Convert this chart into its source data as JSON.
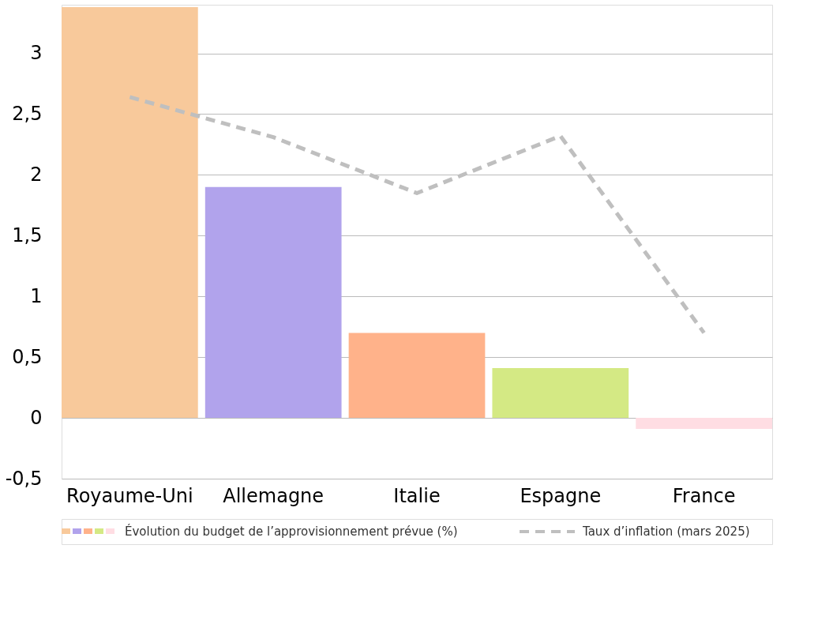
{
  "chart_data": {
    "type": "bar",
    "categories": [
      "Royaume-Uni",
      "Allemagne",
      "Italie",
      "Espagne",
      "France"
    ],
    "series": [
      {
        "name": "Évolution du budget de l’approvisionnement prévue (%)",
        "colors": [
          "#f8c99b",
          "#b1a3ec",
          "#ffb28a",
          "#d4e984",
          "#ffdde3"
        ],
        "values": [
          3.38,
          1.9,
          0.7,
          0.41,
          -0.09
        ]
      },
      {
        "name": "Taux d’inflation (mars 2025)",
        "type": "line",
        "color": "#bfbfbf",
        "line_style": "dashed",
        "values": [
          2.64,
          2.31,
          1.85,
          2.32,
          0.7
        ]
      }
    ],
    "ylim": [
      -0.5,
      3.4
    ],
    "yticks": [
      {
        "value": -0.5,
        "label": "-0,5"
      },
      0,
      {
        "value": 0.5,
        "label": "0,5"
      },
      1,
      {
        "value": 1.5,
        "label": "1,5"
      },
      2,
      {
        "value": 2.5,
        "label": "2,5"
      },
      3
    ],
    "grid": "y",
    "legend": "bottom"
  }
}
